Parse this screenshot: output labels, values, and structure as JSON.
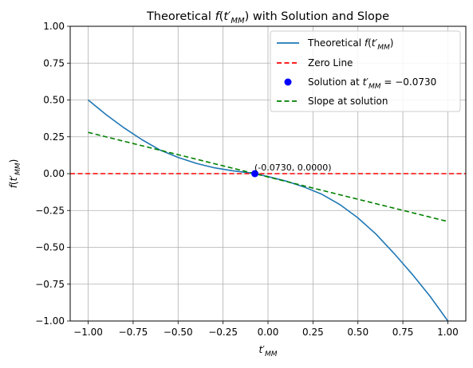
{
  "chart_data": {
    "type": "line",
    "title": {
      "prefix": "Theoretical ",
      "func": "f",
      "var": "t",
      "sub": "MM",
      "suffix": " with Solution and Slope"
    },
    "xlabel": {
      "var": "t",
      "sub": "MM"
    },
    "ylabel": {
      "func": "f",
      "var": "t",
      "sub": "MM"
    },
    "xlim": [
      -1.1,
      1.1
    ],
    "ylim": [
      -1.0,
      1.0
    ],
    "x_ticks": [
      -1.0,
      -0.75,
      -0.5,
      -0.25,
      0.0,
      0.25,
      0.5,
      0.75,
      1.0
    ],
    "x_tick_labels": [
      "−1.00",
      "−0.75",
      "−0.50",
      "−0.25",
      "0.00",
      "0.25",
      "0.50",
      "0.75",
      "1.00"
    ],
    "y_ticks": [
      -1.0,
      -0.75,
      -0.5,
      -0.25,
      0.0,
      0.25,
      0.5,
      0.75,
      1.0
    ],
    "y_tick_labels": [
      "−1.00",
      "−0.75",
      "−0.50",
      "−0.25",
      "0.00",
      "0.25",
      "0.50",
      "0.75",
      "1.00"
    ],
    "grid": true,
    "legend_position": "top-right",
    "series": [
      {
        "name_prefix": "Theoretical ",
        "style": "solid",
        "color": "#1f77b4",
        "x": [
          -1.0,
          -0.9,
          -0.8,
          -0.7,
          -0.6,
          -0.5,
          -0.4,
          -0.3,
          -0.2,
          -0.1,
          -0.073,
          0.0,
          0.1,
          0.2,
          0.3,
          0.4,
          0.5,
          0.6,
          0.7,
          0.8,
          0.9,
          1.0
        ],
        "y": [
          0.5,
          0.4,
          0.31,
          0.23,
          0.16,
          0.11,
          0.07,
          0.04,
          0.02,
          0.005,
          0.0,
          -0.02,
          -0.05,
          -0.09,
          -0.14,
          -0.21,
          -0.3,
          -0.41,
          -0.54,
          -0.68,
          -0.83,
          -1.0
        ]
      },
      {
        "name": "Zero Line",
        "style": "dashed",
        "color": "#ff0000",
        "x": [
          -1.1,
          1.1
        ],
        "y": [
          0.0,
          0.0
        ]
      },
      {
        "name": "Slope at solution",
        "style": "dashed",
        "color": "#008000",
        "x": [
          -1.0,
          1.0
        ],
        "y": [
          0.28,
          -0.325
        ]
      }
    ],
    "points": [
      {
        "name_prefix": "Solution at ",
        "name_suffix": " = −0.0730",
        "color": "#0000ff",
        "x": -0.073,
        "y": 0.0,
        "label": "(-0.0730, 0.0000)"
      }
    ]
  }
}
